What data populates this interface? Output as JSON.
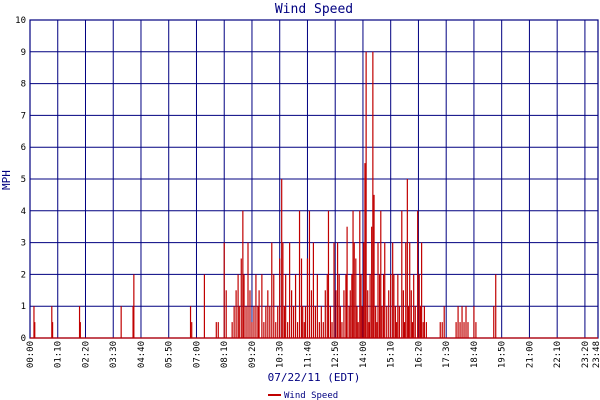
{
  "chart_data": {
    "type": "bar",
    "title": "Wind Speed",
    "xlabel": "07/22/11 (EDT)",
    "ylabel": "MPH",
    "ylim": [
      0,
      10
    ],
    "xlim_minutes": [
      0,
      1433
    ],
    "yticks": [
      "0",
      "1",
      "2",
      "3",
      "4",
      "5",
      "6",
      "7",
      "8",
      "9",
      "10"
    ],
    "xtick_labels": [
      "00:00",
      "01:10",
      "02:20",
      "03:30",
      "04:40",
      "05:50",
      "07:00",
      "08:10",
      "09:20",
      "10:30",
      "11:40",
      "12:50",
      "14:00",
      "15:10",
      "16:20",
      "17:30",
      "18:40",
      "19:50",
      "21:00",
      "22:10",
      "23:20",
      "23:48"
    ],
    "grid": true,
    "legend_position": "bottom-left",
    "series": [
      {
        "name": "Wind Speed",
        "color": "#c00000",
        "points": [
          [
            10,
            1
          ],
          [
            12,
            0.5
          ],
          [
            55,
            1
          ],
          [
            57,
            0.5
          ],
          [
            125,
            1
          ],
          [
            127,
            0.5
          ],
          [
            230,
            1
          ],
          [
            260,
            1
          ],
          [
            262,
            2
          ],
          [
            405,
            1
          ],
          [
            408,
            0.5
          ],
          [
            440,
            2
          ],
          [
            470,
            0.5
          ],
          [
            475,
            0.5
          ],
          [
            490,
            3
          ],
          [
            495,
            1.5
          ],
          [
            510,
            0.5
          ],
          [
            515,
            1
          ],
          [
            520,
            1.5
          ],
          [
            525,
            2
          ],
          [
            528,
            1
          ],
          [
            533,
            2.5
          ],
          [
            537,
            4
          ],
          [
            540,
            2
          ],
          [
            545,
            1
          ],
          [
            550,
            3
          ],
          [
            555,
            1.5
          ],
          [
            560,
            0.5
          ],
          [
            565,
            1
          ],
          [
            570,
            2
          ],
          [
            575,
            1
          ],
          [
            578,
            1.5
          ],
          [
            585,
            2
          ],
          [
            590,
            0.5
          ],
          [
            595,
            1
          ],
          [
            600,
            1.5
          ],
          [
            605,
            1
          ],
          [
            610,
            3
          ],
          [
            615,
            2
          ],
          [
            620,
            0.5
          ],
          [
            625,
            1
          ],
          [
            630,
            2.5
          ],
          [
            635,
            5
          ],
          [
            638,
            3
          ],
          [
            642,
            1
          ],
          [
            645,
            2
          ],
          [
            650,
            0.5
          ],
          [
            655,
            3
          ],
          [
            660,
            1.5
          ],
          [
            665,
            1
          ],
          [
            670,
            2
          ],
          [
            675,
            0.5
          ],
          [
            680,
            4
          ],
          [
            685,
            2.5
          ],
          [
            688,
            1
          ],
          [
            692,
            0.5
          ],
          [
            695,
            1
          ],
          [
            700,
            2.5
          ],
          [
            705,
            4
          ],
          [
            710,
            1.5
          ],
          [
            715,
            3
          ],
          [
            720,
            1
          ],
          [
            725,
            2
          ],
          [
            730,
            0.5
          ],
          [
            735,
            1
          ],
          [
            740,
            0.5
          ],
          [
            745,
            1.5
          ],
          [
            750,
            2
          ],
          [
            753,
            4
          ],
          [
            758,
            1
          ],
          [
            762,
            0.5
          ],
          [
            767,
            3
          ],
          [
            772,
            1.5
          ],
          [
            776,
            3
          ],
          [
            780,
            2
          ],
          [
            783,
            1
          ],
          [
            787,
            0.5
          ],
          [
            792,
            1.5
          ],
          [
            797,
            2
          ],
          [
            800,
            3.5
          ],
          [
            805,
            1
          ],
          [
            808,
            1.5
          ],
          [
            812,
            2
          ],
          [
            815,
            4
          ],
          [
            818,
            3
          ],
          [
            822,
            2.5
          ],
          [
            825,
            1
          ],
          [
            828,
            0.5
          ],
          [
            832,
            4
          ],
          [
            835,
            2
          ],
          [
            838,
            1
          ],
          [
            842,
            3
          ],
          [
            845,
            5.5
          ],
          [
            848,
            9
          ],
          [
            852,
            1.5
          ],
          [
            855,
            0.5
          ],
          [
            858,
            2
          ],
          [
            862,
            3.5
          ],
          [
            865,
            9
          ],
          [
            868,
            4.5
          ],
          [
            872,
            1
          ],
          [
            875,
            0.5
          ],
          [
            878,
            3
          ],
          [
            882,
            2
          ],
          [
            885,
            4
          ],
          [
            888,
            1
          ],
          [
            892,
            2
          ],
          [
            895,
            3
          ],
          [
            900,
            1
          ],
          [
            905,
            1.5
          ],
          [
            910,
            2
          ],
          [
            915,
            3
          ],
          [
            918,
            2
          ],
          [
            922,
            1
          ],
          [
            925,
            0.5
          ],
          [
            928,
            2
          ],
          [
            932,
            1
          ],
          [
            938,
            4
          ],
          [
            942,
            1.5
          ],
          [
            945,
            0.5
          ],
          [
            948,
            3
          ],
          [
            952,
            5
          ],
          [
            955,
            1
          ],
          [
            958,
            3
          ],
          [
            962,
            1.5
          ],
          [
            965,
            0.5
          ],
          [
            968,
            2
          ],
          [
            972,
            1
          ],
          [
            978,
            4
          ],
          [
            982,
            2
          ],
          [
            985,
            1
          ],
          [
            988,
            3
          ],
          [
            992,
            0.5
          ],
          [
            995,
            1
          ],
          [
            1000,
            0.5
          ],
          [
            1035,
            0.5
          ],
          [
            1040,
            0.5
          ],
          [
            1045,
            1
          ],
          [
            1075,
            0.5
          ],
          [
            1080,
            1
          ],
          [
            1085,
            0.5
          ],
          [
            1090,
            1
          ],
          [
            1095,
            0.5
          ],
          [
            1100,
            1
          ],
          [
            1105,
            0.5
          ],
          [
            1120,
            1
          ],
          [
            1125,
            0.5
          ],
          [
            1170,
            1
          ],
          [
            1175,
            2
          ]
        ]
      }
    ]
  }
}
